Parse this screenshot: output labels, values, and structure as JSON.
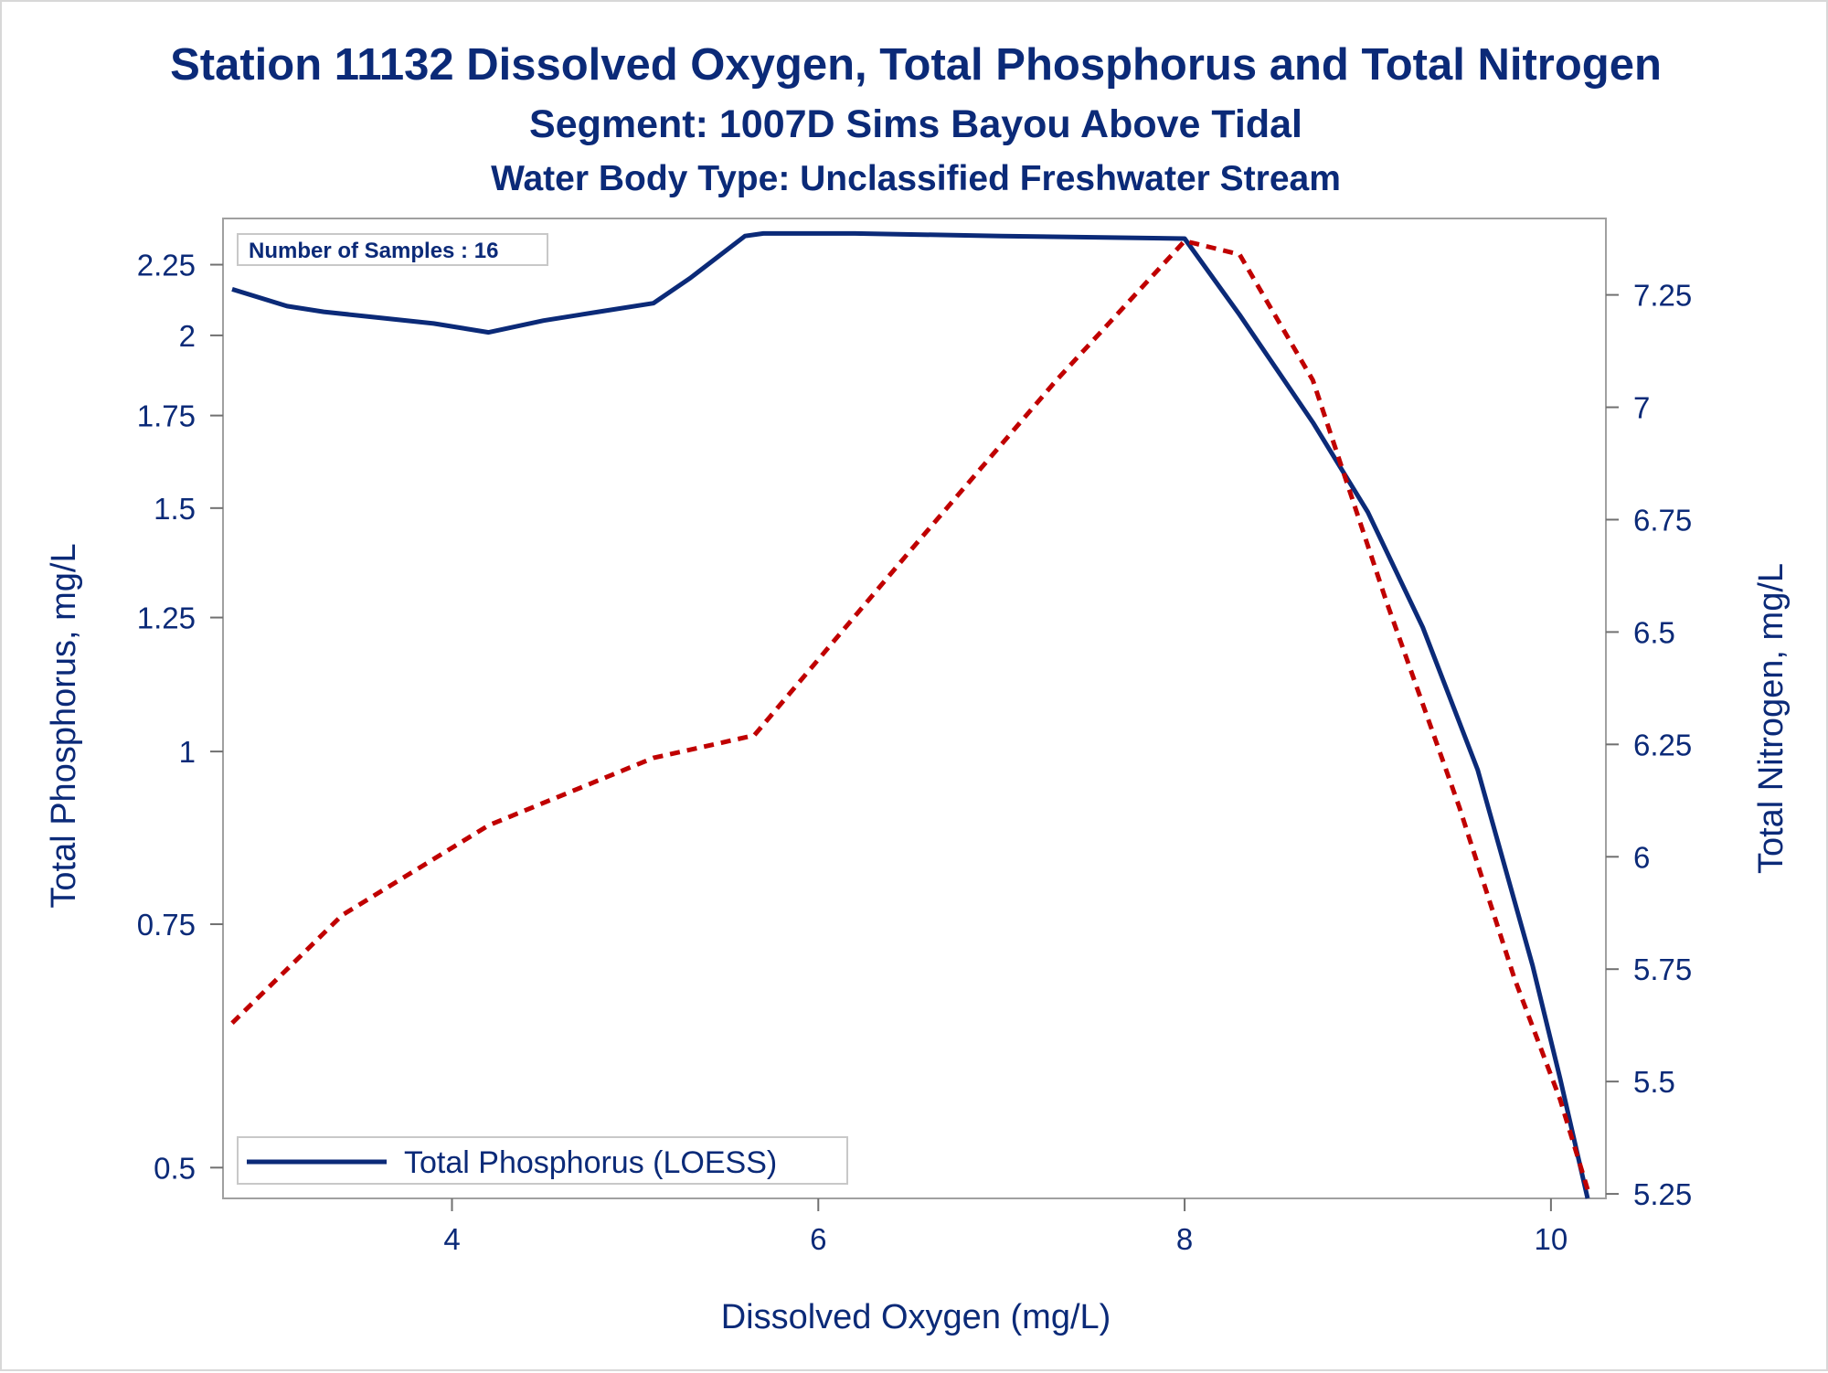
{
  "title": "Station 11132  Dissolved Oxygen, Total Phosphorus and Total Nitrogen",
  "subtitle": "Segment: 1007D  Sims Bayou Above Tidal",
  "subtitle2": "Water Body Type: Unclassified Freshwater Stream",
  "inset_text": "Number of Samples : 16",
  "colors": {
    "text": "#0b2a78",
    "phosphorus": "#0b2a78",
    "nitrogen": "#c00000",
    "frame": "#a0a0a0"
  },
  "chart_data": {
    "type": "line",
    "xlabel": "Dissolved Oxygen (mg/L)",
    "ylabel": "Total Phosphorus, mg/L",
    "y2label": "Total Nitrogen, mg/L",
    "xlim": [
      2.75,
      10.3
    ],
    "ylim": [
      0.475,
      2.43
    ],
    "y_scale": "log",
    "y2lim": [
      5.24,
      7.42
    ],
    "x_ticks": [
      "4",
      "6",
      "8",
      "10"
    ],
    "y_ticks": [
      "0.5",
      "0.75",
      "1",
      "1.25",
      "1.5",
      "1.75",
      "2",
      "2.25"
    ],
    "y2_ticks": [
      "5.25",
      "5.5",
      "5.75",
      "6",
      "6.25",
      "6.5",
      "6.75",
      "7",
      "7.25"
    ],
    "legend": {
      "position": "bottom-left",
      "entries": [
        "Total Phosphorus (LOESS)"
      ]
    },
    "series": [
      {
        "name": "Total Phosphorus (LOESS)",
        "axis": "left",
        "style": "solid",
        "x": [
          2.8,
          3.1,
          3.3,
          3.6,
          3.9,
          4.2,
          4.5,
          4.8,
          5.1,
          5.3,
          5.6,
          5.7,
          6.2,
          7.0,
          8.0,
          8.3,
          8.7,
          9.0,
          9.3,
          9.6,
          9.9,
          10.05,
          10.2
        ],
        "values": [
          2.16,
          2.1,
          2.08,
          2.06,
          2.04,
          2.01,
          2.05,
          2.08,
          2.11,
          2.2,
          2.36,
          2.37,
          2.37,
          2.36,
          2.35,
          2.07,
          1.73,
          1.49,
          1.23,
          0.97,
          0.7,
          0.58,
          0.475
        ]
      },
      {
        "axis": "right",
        "style": "dashed",
        "x": [
          2.8,
          3.4,
          4.2,
          5.1,
          5.65,
          6.5,
          7.3,
          8.0,
          8.3,
          8.7,
          9.1,
          9.5,
          9.8,
          10.05,
          10.2
        ],
        "values": [
          5.63,
          5.87,
          6.07,
          6.22,
          6.27,
          6.68,
          7.06,
          7.37,
          7.34,
          7.06,
          6.57,
          6.11,
          5.73,
          5.46,
          5.26
        ]
      }
    ]
  }
}
